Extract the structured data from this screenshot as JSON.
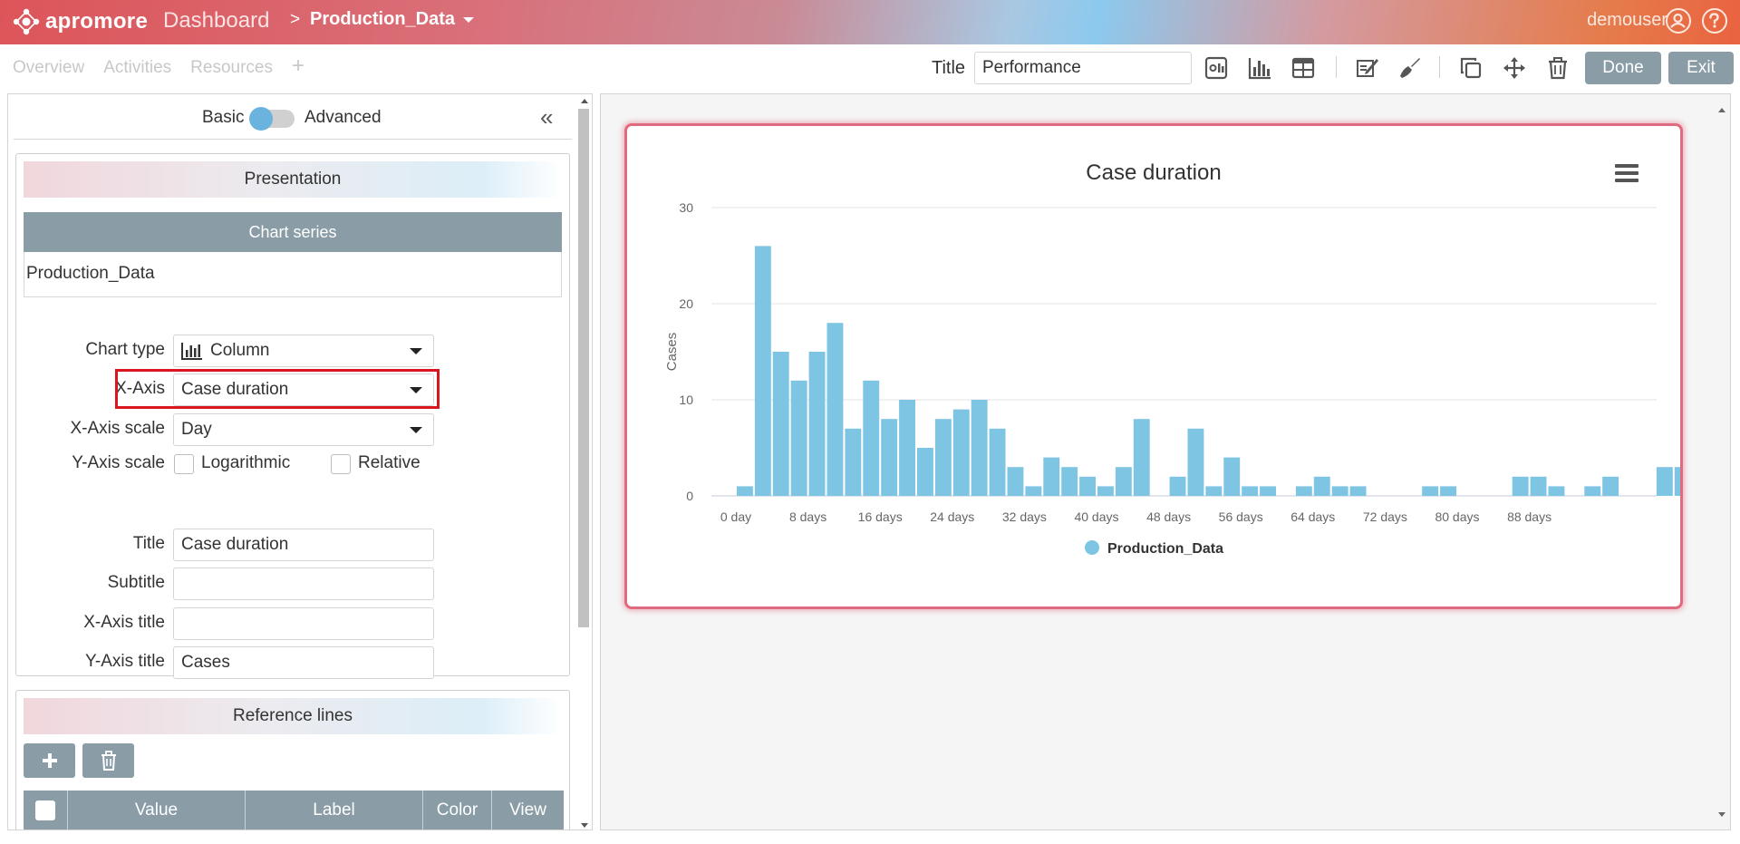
{
  "header": {
    "logo_text": "apromore",
    "dashboard": "Dashboard",
    "separator": ">",
    "log_name": "Production_Data",
    "user": "demouser"
  },
  "tabs": [
    "Overview",
    "Activities",
    "Resources"
  ],
  "tab_add": "+",
  "toolbar": {
    "title_label": "Title",
    "title_value": "Performance",
    "done_label": "Done",
    "exit_label": "Exit"
  },
  "left": {
    "basic_label": "Basic",
    "advanced_label": "Advanced",
    "presentation_heading": "Presentation",
    "chart_series_heading": "Chart series",
    "series_name": "Production_Data",
    "chart_type_label": "Chart type",
    "chart_type_value": "Column",
    "x_axis_label": "X-Axis",
    "x_axis_value": "Case duration",
    "x_axis_scale_label": "X-Axis scale",
    "x_axis_scale_value": "Day",
    "y_axis_scale_label": "Y-Axis scale",
    "logarithmic_label": "Logarithmic",
    "relative_label": "Relative",
    "title_label": "Title",
    "title_value": "Case duration",
    "subtitle_label": "Subtitle",
    "subtitle_value": "",
    "x_axis_title_label": "X-Axis title",
    "x_axis_title_value": "",
    "y_axis_title_label": "Y-Axis title",
    "y_axis_title_value": "Cases",
    "reference_lines_heading": "Reference lines",
    "ref_columns": [
      "Value",
      "Label",
      "Color",
      "View"
    ]
  },
  "chart_data": {
    "type": "bar",
    "title": "Case duration",
    "xlabel": "",
    "ylabel": "Cases",
    "ylim": [
      0,
      30
    ],
    "yticks": [
      0,
      10,
      20,
      30
    ],
    "x_unit": "days",
    "bin_width": 2,
    "x_tick_labels": [
      "0 day",
      "8 days",
      "16 days",
      "24 days",
      "32 days",
      "40 days",
      "48 days",
      "56 days",
      "64 days",
      "72 days",
      "80 days",
      "88 days"
    ],
    "x_tick_values": [
      0,
      8,
      16,
      24,
      32,
      40,
      48,
      56,
      64,
      72,
      80,
      88
    ],
    "categories": [
      "0",
      "2",
      "4",
      "6",
      "8",
      "10",
      "12",
      "14",
      "16",
      "18",
      "20",
      "22",
      "24",
      "26",
      "28",
      "30",
      "32",
      "34",
      "36",
      "38",
      "40",
      "42",
      "44",
      "46",
      "48",
      "50",
      "52",
      "54",
      "56",
      "58",
      "60",
      "62",
      "64",
      "66",
      "68",
      "70",
      "72",
      "74",
      "76",
      "78",
      "80",
      "82",
      "84",
      "86",
      "88",
      "90",
      "92",
      "94",
      "96",
      "98",
      "100",
      "102",
      "104"
    ],
    "series": [
      {
        "name": "Production_Data",
        "color": "#7ec4e3",
        "values": [
          1,
          26,
          15,
          12,
          15,
          18,
          7,
          12,
          8,
          10,
          5,
          8,
          9,
          10,
          7,
          3,
          1,
          4,
          3,
          2,
          1,
          3,
          8,
          0,
          2,
          7,
          1,
          4,
          1,
          1,
          0,
          1,
          2,
          1,
          1,
          0,
          0,
          0,
          1,
          1,
          0,
          0,
          0,
          2,
          2,
          1,
          0,
          1,
          2,
          0,
          0,
          3,
          3
        ]
      }
    ],
    "legend": "bottom-center"
  }
}
